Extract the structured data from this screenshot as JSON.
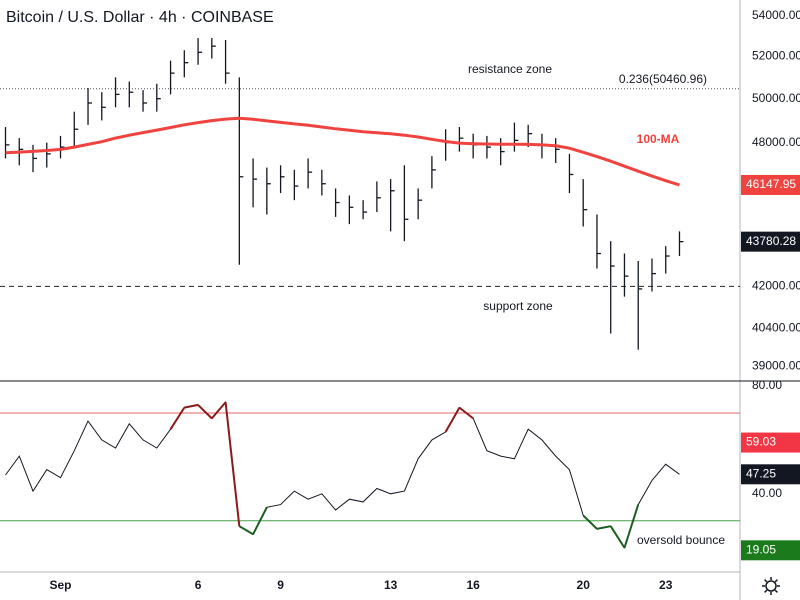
{
  "chart_data": [
    {
      "type": "ohlc",
      "title": "Bitcoin / U.S. Dollar · 4h · COINBASE",
      "x": [
        -1,
        -0.5,
        0,
        0.5,
        1,
        1.5,
        2,
        2.5,
        3,
        3.5,
        4,
        4.5,
        5,
        5.5,
        6,
        6.5,
        7,
        7.5,
        8,
        8.5,
        9,
        9.5,
        10,
        10.5,
        11,
        11.5,
        12,
        12.5,
        13,
        13.5,
        14,
        14.5,
        15,
        15.5,
        16,
        16.5,
        17,
        17.5,
        18,
        18.5,
        19,
        19.5,
        20,
        20.5,
        21,
        21.5,
        22,
        22.5,
        23,
        23.5
      ],
      "high": [
        48700,
        48200,
        47900,
        48000,
        48300,
        49400,
        50500,
        50300,
        51000,
        50800,
        50400,
        50700,
        51800,
        52300,
        52900,
        52900,
        52800,
        51000,
        47300,
        46900,
        47000,
        46800,
        47300,
        46800,
        46000,
        45700,
        45500,
        46300,
        46400,
        47000,
        46000,
        47400,
        48600,
        48700,
        48400,
        48300,
        48200,
        48900,
        48800,
        48400,
        48200,
        47500,
        46400,
        44900,
        43800,
        43300,
        43000,
        43100,
        43600,
        44200
      ],
      "low": [
        47300,
        47000,
        46700,
        46900,
        47300,
        47800,
        48800,
        49000,
        49600,
        49600,
        49400,
        49400,
        50200,
        51000,
        51600,
        51900,
        50700,
        42850,
        45200,
        44900,
        45800,
        45500,
        46000,
        45700,
        44800,
        44500,
        44700,
        45000,
        44200,
        43800,
        44700,
        46000,
        47200,
        47600,
        47300,
        47300,
        47000,
        47600,
        47800,
        47300,
        47100,
        45800,
        44400,
        42700,
        40200,
        41600,
        39600,
        41800,
        42500,
        43200
      ],
      "close": [
        47900,
        47700,
        47300,
        47500,
        47800,
        48600,
        49800,
        49600,
        50200,
        50300,
        49800,
        50000,
        51200,
        51700,
        52200,
        52500,
        51200,
        46500,
        46400,
        46200,
        46500,
        46100,
        46700,
        46200,
        45400,
        45200,
        45000,
        45600,
        45900,
        44700,
        45500,
        46800,
        48000,
        48200,
        47900,
        47800,
        47600,
        48100,
        48400,
        47900,
        47700,
        46600,
        45100,
        43300,
        42800,
        42400,
        41900,
        42500,
        43200,
        43780.28
      ],
      "color": "#131722",
      "ma": {
        "name": "100-MA",
        "color": "#f0433f",
        "values": [
          47550,
          47580,
          47610,
          47650,
          47700,
          47800,
          47920,
          48040,
          48200,
          48330,
          48450,
          48560,
          48680,
          48800,
          48900,
          48990,
          49060,
          49100,
          49050,
          48980,
          48910,
          48840,
          48780,
          48700,
          48620,
          48550,
          48490,
          48440,
          48400,
          48330,
          48250,
          48150,
          48050,
          47980,
          47950,
          47940,
          47930,
          47930,
          47920,
          47900,
          47860,
          47750,
          47570,
          47380,
          47180,
          46960,
          46740,
          46530,
          46330,
          46147.95
        ]
      },
      "xlim": [
        -1.2,
        25.7
      ],
      "ylim": [
        38500,
        54800
      ],
      "log": true,
      "yticks": [
        {
          "value": 54000,
          "label": "54000.00"
        },
        {
          "value": 52000,
          "label": "52000.00"
        },
        {
          "value": 50000,
          "label": "50000.00"
        },
        {
          "value": 48000,
          "label": "48000.00"
        },
        {
          "value": 42000,
          "label": "42000.00"
        },
        {
          "value": 40400,
          "label": "40400.00"
        },
        {
          "value": 39000,
          "label": "39000.00"
        }
      ],
      "hlines": [
        {
          "value": 50460.96,
          "label": "0.236(50460.96)",
          "color": "#555555",
          "dash": "1 2"
        },
        {
          "value": 42000,
          "color": "#222222",
          "dash": "5 4"
        }
      ],
      "annotations": [
        "resistance zone",
        "support zone"
      ]
    },
    {
      "type": "line",
      "x": [
        -1,
        -0.5,
        0,
        0.5,
        1,
        1.5,
        2,
        2.5,
        3,
        3.5,
        4,
        4.5,
        5,
        5.5,
        6,
        6.5,
        7,
        7.5,
        8,
        8.5,
        9,
        9.5,
        10,
        10.5,
        11,
        11.5,
        12,
        12.5,
        13,
        13.5,
        14,
        14.5,
        15,
        15.5,
        16,
        16.5,
        17,
        17.5,
        18,
        18.5,
        19,
        19.5,
        20,
        20.5,
        21,
        21.5,
        22,
        22.5,
        23,
        23.5
      ],
      "values": [
        47,
        54,
        41,
        49,
        46,
        56,
        67,
        60,
        57,
        66,
        60,
        57,
        64,
        72,
        73,
        68,
        74,
        28,
        25,
        35,
        36,
        41,
        38,
        40,
        34,
        38,
        37,
        42,
        40,
        41,
        53,
        60,
        63,
        72,
        68,
        56,
        54,
        53,
        64,
        60,
        54,
        49,
        32,
        27,
        28,
        20,
        36,
        45,
        51,
        47.25
      ],
      "color": "#131722",
      "high_color": "#8b1a1a",
      "low_color": "#1b5e20",
      "xlim": [
        -1.2,
        25.7
      ],
      "ylim": [
        11,
        81.5
      ],
      "yticks": [
        {
          "value": 80,
          "label": "80.00"
        },
        {
          "value": 40,
          "label": "40.00"
        }
      ],
      "xticks": [
        {
          "value": 1,
          "label": "Sep"
        },
        6,
        9,
        13,
        16,
        20,
        23
      ],
      "hlines": [
        {
          "value": 70,
          "color": "#e06666"
        },
        {
          "value": 30,
          "color": "#43a047"
        }
      ],
      "tags": [
        {
          "value": 59.03,
          "color": "#f23645"
        },
        {
          "value": 19.05,
          "color": "#1b7a1b"
        }
      ],
      "annotations": [
        "oversold bounce"
      ]
    }
  ]
}
